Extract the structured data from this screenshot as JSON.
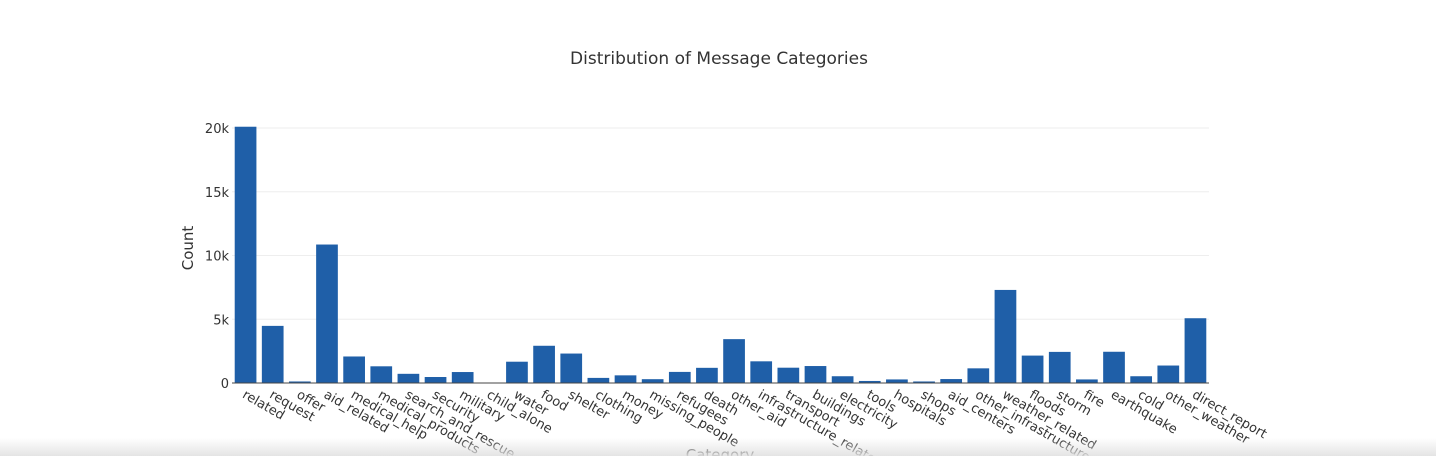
{
  "chart_data": {
    "type": "bar",
    "title": "Distribution of Message Categories",
    "xlabel": "Category",
    "ylabel": "Count",
    "ylim": [
      0,
      20000
    ],
    "yticks": [
      0,
      5000,
      10000,
      15000,
      20000
    ],
    "ytick_labels": [
      "0",
      "5k",
      "10k",
      "15k",
      "20k"
    ],
    "grid": true,
    "bar_color": "#1f5fa8",
    "categories": [
      "related",
      "request",
      "offer",
      "aid_related",
      "medical_help",
      "medical_products",
      "search_and_rescue",
      "security",
      "military",
      "child_alone",
      "water",
      "food",
      "shelter",
      "clothing",
      "money",
      "missing_people",
      "refugees",
      "death",
      "other_aid",
      "infrastructure_related",
      "transport",
      "buildings",
      "electricity",
      "tools",
      "hospitals",
      "shops",
      "aid_centers",
      "other_infrastructure",
      "weather_related",
      "floods",
      "storm",
      "fire",
      "earthquake",
      "cold",
      "other_weather",
      "direct_report"
    ],
    "values": [
      20100,
      4480,
      120,
      10860,
      2080,
      1310,
      720,
      470,
      860,
      0,
      1670,
      2920,
      2310,
      400,
      600,
      300,
      870,
      1190,
      3440,
      1700,
      1200,
      1330,
      530,
      160,
      280,
      120,
      310,
      1150,
      7300,
      2150,
      2440,
      280,
      2450,
      530,
      1370,
      5080
    ]
  }
}
